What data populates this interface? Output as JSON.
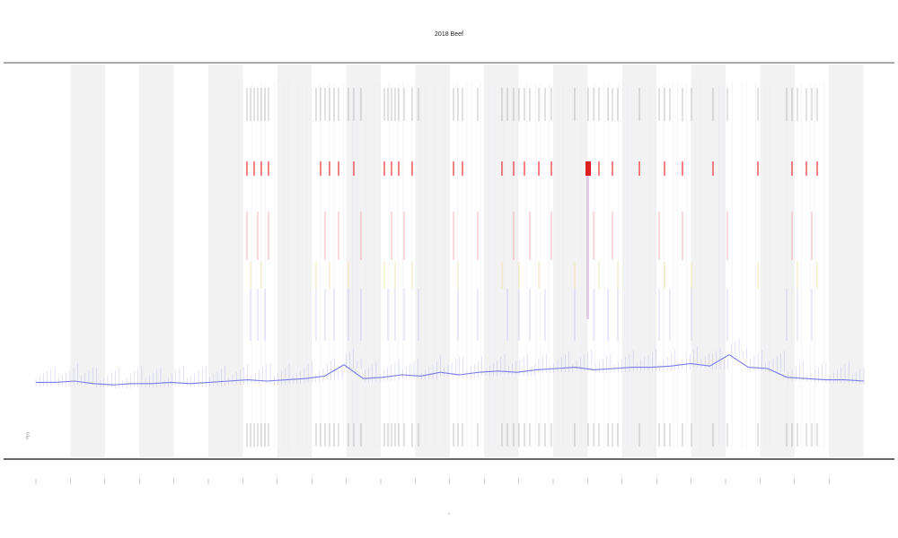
{
  "chart_data": {
    "type": "line",
    "title": "2018 Beef",
    "xlabel": "t",
    "ylabel": "",
    "note_label": "P[?]",
    "grid": true,
    "x_ticks": [
      "",
      "",
      "",
      "",
      "",
      "",
      "",
      "",
      "",
      "",
      "",
      "",
      "",
      "",
      "",
      "",
      "",
      "",
      "",
      "",
      "",
      "",
      "",
      ""
    ],
    "shaded_bands": [
      1,
      3,
      5,
      7,
      9,
      11,
      13,
      15,
      17,
      19,
      21,
      23
    ],
    "event_rows": [
      "top-grey",
      "red",
      "dark-red",
      "yellow",
      "blue",
      "bottom-grey"
    ],
    "series": [
      {
        "color": "#6a6ae8",
        "values": [
          0.04,
          0.04,
          0.05,
          0.03,
          0.02,
          0.03,
          0.03,
          0.04,
          0.03,
          0.04,
          0.05,
          0.06,
          0.05,
          0.06,
          0.07,
          0.09,
          0.18,
          0.07,
          0.08,
          0.1,
          0.09,
          0.12,
          0.1,
          0.12,
          0.13,
          0.12,
          0.14,
          0.15,
          0.16,
          0.14,
          0.15,
          0.16,
          0.16,
          0.17,
          0.19,
          0.17,
          0.26,
          0.16,
          0.15,
          0.08,
          0.07,
          0.06,
          0.06,
          0.05
        ]
      }
    ]
  }
}
